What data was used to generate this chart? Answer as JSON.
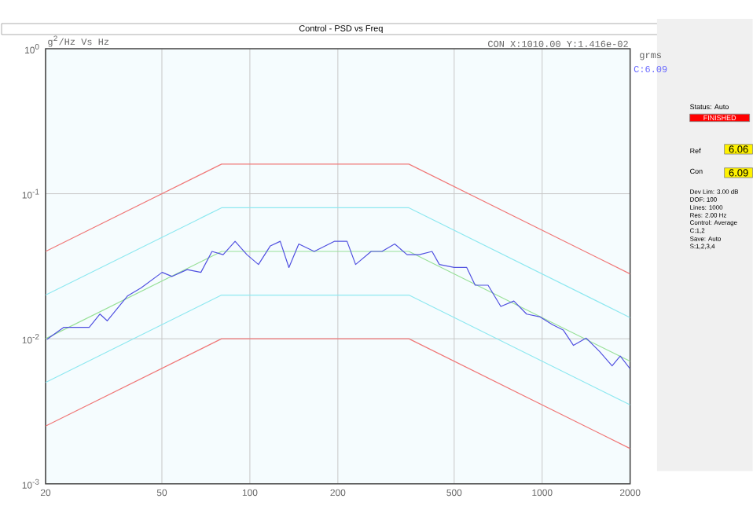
{
  "chart_data": {
    "type": "line",
    "title": "Control - PSD vs Freq",
    "ylabel": "g$^{2}$/Hz Vs Hz",
    "log": "xy",
    "grid": true,
    "line_style": "solid",
    "marker": "none",
    "xlim": [
      20,
      2000
    ],
    "xticks": [
      20,
      50,
      100,
      200,
      500,
      1000,
      2000
    ],
    "ylim": [
      0.001,
      1
    ],
    "yticks": [
      {
        "value": 0.001,
        "label": "10$^{-3}$"
      },
      {
        "value": 0.01,
        "label": "10$^{-2}$"
      },
      {
        "value": 0.1,
        "label": "10$^{-1}$"
      },
      {
        "value": 1,
        "label": "10$^{0}$"
      }
    ],
    "annotations": [
      "CON X:1010.00 Y:1.416e-02",
      "grms",
      "C:6.09",
      "Status: Auto",
      "FINISHED",
      "Ref",
      "6.06",
      "Con",
      "6.09",
      "Dev Lim: 3.00 dB",
      "DOF: 100",
      "Lines: 1000",
      "Res: 2.00 Hz",
      "Control: Average",
      "C:1,2",
      "Save: Auto",
      "S:1,2,3,4"
    ],
    "series": [
      {
        "color": "#f07878",
        "x": [
          20,
          80,
          350,
          2000
        ],
        "values": [
          0.04,
          0.16,
          0.16,
          0.028
        ]
      },
      {
        "color": "#8ee8f0",
        "x": [
          20,
          80,
          350,
          2000
        ],
        "values": [
          0.02,
          0.08,
          0.08,
          0.014
        ]
      },
      {
        "color": "#98e098",
        "x": [
          20,
          80,
          350,
          2000
        ],
        "values": [
          0.01,
          0.04,
          0.04,
          0.007
        ]
      },
      {
        "color": "#8ee8f0",
        "x": [
          20,
          80,
          350,
          2000
        ],
        "values": [
          0.005,
          0.02,
          0.02,
          0.0035
        ]
      },
      {
        "color": "#f07878",
        "x": [
          20,
          80,
          350,
          2000
        ],
        "values": [
          0.0025,
          0.01,
          0.01,
          0.00175
        ]
      },
      {
        "color": "#5050e0",
        "x": [
          20.2,
          23.1,
          28.2,
          30.7,
          32.5,
          38.2,
          42.4,
          50.1,
          54.2,
          61,
          68,
          74.2,
          81,
          89,
          97.7,
          107,
          117.5,
          127,
          136,
          147,
          166,
          195,
          215,
          230,
          260,
          283,
          313,
          345,
          380,
          420,
          445,
          500,
          552,
          590,
          653,
          722,
          800,
          885,
          980,
          1085,
          1180,
          1280,
          1415,
          1570,
          1735,
          1850,
          2000
        ],
        "values": [
          0.0099,
          0.012,
          0.012,
          0.0148,
          0.0133,
          0.0198,
          0.0224,
          0.0287,
          0.0269,
          0.03,
          0.0287,
          0.04,
          0.038,
          0.047,
          0.038,
          0.0325,
          0.0437,
          0.047,
          0.031,
          0.045,
          0.04,
          0.047,
          0.047,
          0.0325,
          0.04,
          0.04,
          0.045,
          0.038,
          0.038,
          0.04,
          0.0325,
          0.031,
          0.031,
          0.0234,
          0.0234,
          0.0167,
          0.0182,
          0.0148,
          0.0142,
          0.0125,
          0.0115,
          0.009,
          0.0101,
          0.0082,
          0.0065,
          0.0076,
          0.0062
        ]
      }
    ]
  }
}
